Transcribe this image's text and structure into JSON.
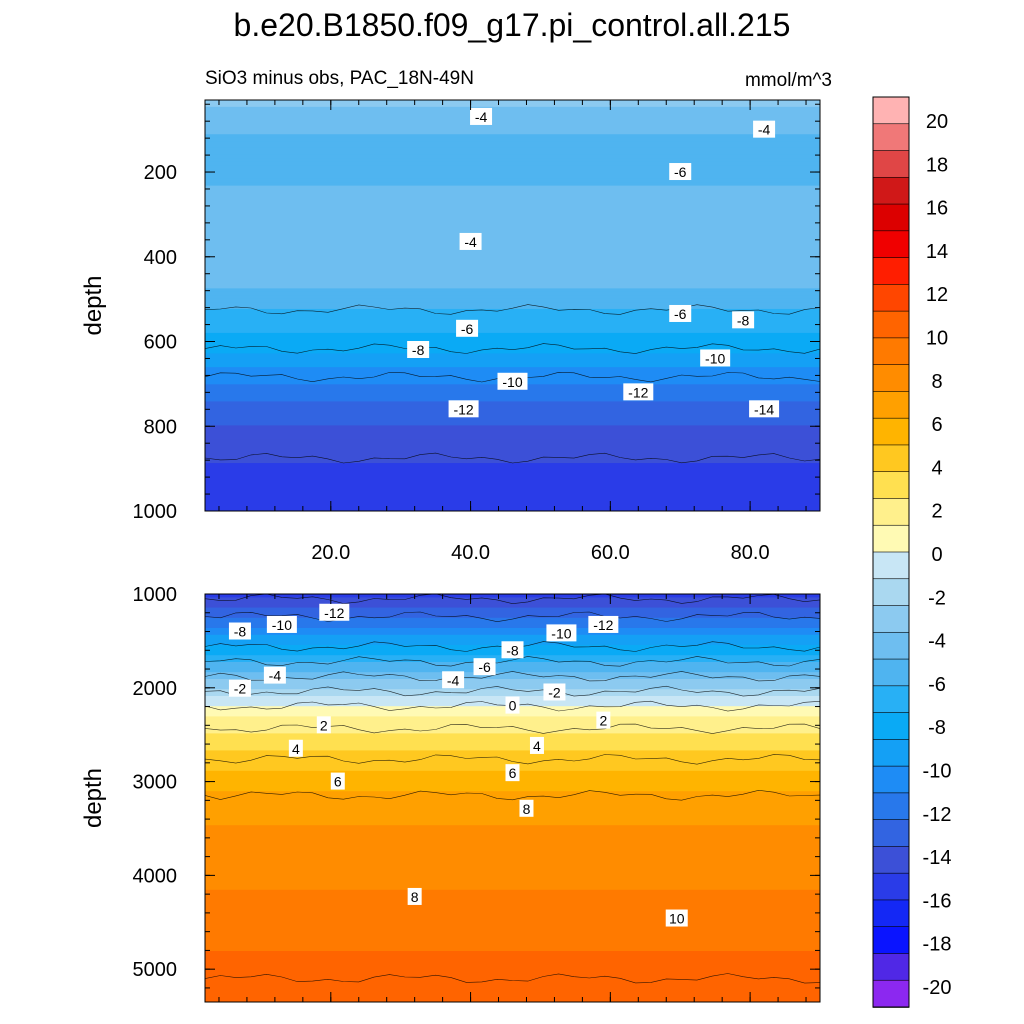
{
  "title": "b.e20.B1850.f09_g17.pi_control.all.215",
  "subtitle_left": "SiO3 minus obs, PAC_18N-49N",
  "subtitle_right": "mmol/m^3",
  "colorbar": {
    "levels": [
      -20,
      -18,
      -16,
      -14,
      -12,
      -10,
      -8,
      -6,
      -4,
      -2,
      0,
      2,
      4,
      6,
      8,
      10,
      12,
      14,
      16,
      18,
      20
    ],
    "tick_labels": [
      "20",
      "18",
      "16",
      "14",
      "12",
      "10",
      "8",
      "6",
      "4",
      "2",
      "0",
      "-2",
      "-4",
      "-6",
      "-8",
      "-10",
      "-12",
      "-14",
      "-16",
      "-18",
      "-20"
    ],
    "colors_top_to_bottom": [
      "#ffb3b3",
      "#f07878",
      "#e04646",
      "#d01818",
      "#dc0000",
      "#f00000",
      "#ff1e00",
      "#ff4600",
      "#ff6400",
      "#ff7a00",
      "#ff8c00",
      "#ffa000",
      "#ffb400",
      "#ffc820",
      "#ffe050",
      "#fff08c",
      "#fffab4",
      "#c8e6f5",
      "#aad8f0",
      "#8ccaf0",
      "#6ebef0",
      "#4fb4f0",
      "#28b0f5",
      "#0aaaf5",
      "#14a0f5",
      "#1e8cf5",
      "#2878eb",
      "#3264e1",
      "#3c50d7",
      "#2a3ce8",
      "#1428f5",
      "#0a14ff",
      "#5028e6",
      "#8c28f0"
    ]
  },
  "chart_data": [
    {
      "type": "heatmap",
      "panel": "upper",
      "ylabel": "depth",
      "xlabel": "",
      "xlim": [
        2,
        90
      ],
      "ylim": [
        1000,
        30
      ],
      "x_ticks": [
        20,
        40,
        60,
        80
      ],
      "x_tick_labels": [
        "20.0",
        "40.0",
        "60.0",
        "80.0"
      ],
      "y_ticks": [
        200,
        400,
        600,
        800,
        1000
      ],
      "y_tick_labels": [
        "200",
        "400",
        "600",
        "800",
        "1000"
      ],
      "depth_profile": [
        {
          "depth": 30,
          "value": -3.0
        },
        {
          "depth": 60,
          "value": -4.0
        },
        {
          "depth": 100,
          "value": -4.5
        },
        {
          "depth": 150,
          "value": -5.5
        },
        {
          "depth": 200,
          "value": -5.0
        },
        {
          "depth": 250,
          "value": -4.5
        },
        {
          "depth": 300,
          "value": -4.0
        },
        {
          "depth": 350,
          "value": -3.8
        },
        {
          "depth": 400,
          "value": -3.6
        },
        {
          "depth": 450,
          "value": -4.0
        },
        {
          "depth": 500,
          "value": -5.5
        },
        {
          "depth": 550,
          "value": -6.5
        },
        {
          "depth": 600,
          "value": -7.5
        },
        {
          "depth": 650,
          "value": -9.0
        },
        {
          "depth": 700,
          "value": -10.5
        },
        {
          "depth": 750,
          "value": -12.0
        },
        {
          "depth": 800,
          "value": -13.0
        },
        {
          "depth": 850,
          "value": -13.8
        },
        {
          "depth": 900,
          "value": -14.2
        },
        {
          "depth": 1000,
          "value": -14.5
        }
      ],
      "contour_labels": [
        {
          "text": "-4",
          "x": 41.5,
          "depth": 70
        },
        {
          "text": "-4",
          "x": 82,
          "depth": 100
        },
        {
          "text": "-6",
          "x": 70,
          "depth": 200
        },
        {
          "text": "-4",
          "x": 40,
          "depth": 365
        },
        {
          "text": "-6",
          "x": 39.5,
          "depth": 570
        },
        {
          "text": "-6",
          "x": 70,
          "depth": 535
        },
        {
          "text": "-8",
          "x": 79,
          "depth": 550
        },
        {
          "text": "-8",
          "x": 32.5,
          "depth": 620
        },
        {
          "text": "-10",
          "x": 75,
          "depth": 640
        },
        {
          "text": "-10",
          "x": 46,
          "depth": 695
        },
        {
          "text": "-12",
          "x": 64,
          "depth": 720
        },
        {
          "text": "-12",
          "x": 39,
          "depth": 760
        },
        {
          "text": "-14",
          "x": 82,
          "depth": 760
        }
      ]
    },
    {
      "type": "heatmap",
      "panel": "lower",
      "ylabel": "depth",
      "xlabel": "",
      "xlim": [
        2,
        90
      ],
      "ylim": [
        5350,
        1000
      ],
      "y_ticks": [
        1000,
        2000,
        3000,
        4000,
        5000
      ],
      "y_tick_labels": [
        "1000",
        "2000",
        "3000",
        "4000",
        "5000"
      ],
      "depth_profile": [
        {
          "depth": 1000,
          "value": -14.5
        },
        {
          "depth": 1200,
          "value": -12.5
        },
        {
          "depth": 1400,
          "value": -10.0
        },
        {
          "depth": 1600,
          "value": -7.5
        },
        {
          "depth": 1800,
          "value": -5.0
        },
        {
          "depth": 2000,
          "value": -2.5
        },
        {
          "depth": 2150,
          "value": -0.5
        },
        {
          "depth": 2300,
          "value": 1.2
        },
        {
          "depth": 2600,
          "value": 3.0
        },
        {
          "depth": 3000,
          "value": 5.5
        },
        {
          "depth": 3500,
          "value": 7.2
        },
        {
          "depth": 4000,
          "value": 8.0
        },
        {
          "depth": 4500,
          "value": 8.8
        },
        {
          "depth": 5000,
          "value": 9.8
        },
        {
          "depth": 5350,
          "value": 10.5
        }
      ],
      "contour_labels": [
        {
          "text": "-12",
          "x": 20.5,
          "depth": 1200
        },
        {
          "text": "-10",
          "x": 13,
          "depth": 1330
        },
        {
          "text": "-8",
          "x": 7,
          "depth": 1400
        },
        {
          "text": "-12",
          "x": 59,
          "depth": 1330
        },
        {
          "text": "-10",
          "x": 53,
          "depth": 1420
        },
        {
          "text": "-8",
          "x": 46,
          "depth": 1600
        },
        {
          "text": "-6",
          "x": 42,
          "depth": 1780
        },
        {
          "text": "-4",
          "x": 12,
          "depth": 1870
        },
        {
          "text": "-4",
          "x": 37.5,
          "depth": 1920
        },
        {
          "text": "-2",
          "x": 7,
          "depth": 2010
        },
        {
          "text": "-2",
          "x": 52,
          "depth": 2050
        },
        {
          "text": "0",
          "x": 46,
          "depth": 2190
        },
        {
          "text": "2",
          "x": 19,
          "depth": 2400
        },
        {
          "text": "2",
          "x": 59,
          "depth": 2350
        },
        {
          "text": "4",
          "x": 49.5,
          "depth": 2620
        },
        {
          "text": "4",
          "x": 15,
          "depth": 2650
        },
        {
          "text": "6",
          "x": 46,
          "depth": 2910
        },
        {
          "text": "6",
          "x": 21,
          "depth": 3000
        },
        {
          "text": "8",
          "x": 48,
          "depth": 3290
        },
        {
          "text": "8",
          "x": 32,
          "depth": 4230
        },
        {
          "text": "10",
          "x": 69.5,
          "depth": 4460
        }
      ]
    }
  ]
}
